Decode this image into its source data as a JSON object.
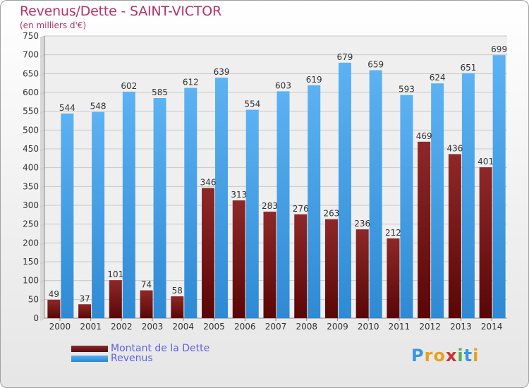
{
  "chart_data": {
    "type": "bar",
    "title": "Revenus/Dette - SAINT-VICTOR",
    "subtitle": "(en milliers d'€)",
    "categories": [
      "2000",
      "2001",
      "2002",
      "2003",
      "2004",
      "2005",
      "2006",
      "2007",
      "2008",
      "2009",
      "2010",
      "2011",
      "2012",
      "2013",
      "2014"
    ],
    "series": [
      {
        "name": "Montant de la Dette",
        "color": "#7a1a1a",
        "values": [
          49,
          37,
          101,
          74,
          58,
          346,
          313,
          283,
          276,
          263,
          236,
          212,
          469,
          436,
          401
        ]
      },
      {
        "name": "Revenus",
        "color": "#3a96de",
        "values": [
          544,
          548,
          602,
          585,
          612,
          639,
          554,
          603,
          619,
          679,
          659,
          593,
          624,
          651,
          699
        ]
      }
    ],
    "ylim": [
      0,
      750
    ],
    "yticks": [
      0,
      50,
      100,
      150,
      200,
      250,
      300,
      350,
      400,
      450,
      500,
      550,
      600,
      650,
      700,
      750
    ],
    "grid": true,
    "legend_position": "bottom-left"
  },
  "logo": {
    "letters": [
      "P",
      "r",
      "o",
      "x",
      "i",
      "t",
      "i"
    ],
    "colors": [
      "#3a96de",
      "#e8a020",
      "#e8a020",
      "#d03030",
      "#50b050",
      "#3a96de",
      "#e8a020"
    ]
  }
}
